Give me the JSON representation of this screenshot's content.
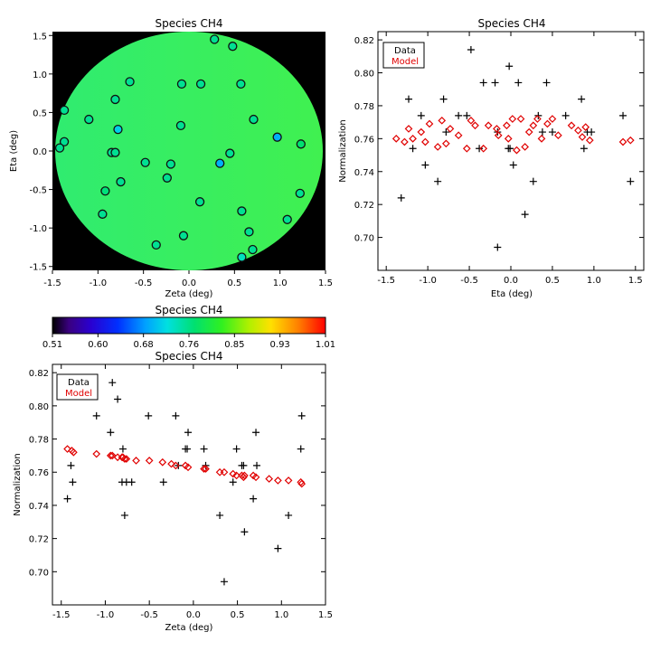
{
  "colors": {
    "data": "#000000",
    "model": "#e00000",
    "background": "#000000",
    "field": "#33ee66"
  },
  "map": {
    "title": "Species CH4",
    "xlabel": "Zeta (deg)",
    "ylabel": "Eta (deg)",
    "xlim": [
      -1.5,
      1.5
    ],
    "ylim": [
      -1.55,
      1.55
    ],
    "xticks": [
      "-1.5",
      "-1.0",
      "-0.5",
      "0.0",
      "0.5",
      "1.0",
      "1.5"
    ],
    "yticks": [
      "1.5",
      "1.0",
      "0.5",
      "0.0",
      "-0.5",
      "-1.0",
      "-1.5"
    ]
  },
  "colorbar": {
    "title": "Species CH4",
    "ticks": [
      "0.51",
      "0.60",
      "0.68",
      "0.76",
      "0.85",
      "0.93",
      "1.01"
    ]
  },
  "legend": {
    "data": "Data",
    "model": "Model"
  },
  "chart_data": [
    {
      "type": "scatter",
      "title": "Species CH4",
      "xlabel": "Zeta (deg)",
      "ylabel": "Eta (deg)",
      "xlim": [
        -1.5,
        1.5
      ],
      "ylim": [
        -1.55,
        1.55
      ],
      "points": [
        [
          0.28,
          1.45
        ],
        [
          0.48,
          1.36
        ],
        [
          -0.65,
          0.9
        ],
        [
          -0.08,
          0.87
        ],
        [
          0.13,
          0.87
        ],
        [
          0.57,
          0.87
        ],
        [
          -1.37,
          0.53
        ],
        [
          -1.1,
          0.41
        ],
        [
          -0.81,
          0.67
        ],
        [
          -0.78,
          0.28
        ],
        [
          0.71,
          0.41
        ],
        [
          -0.09,
          0.33
        ],
        [
          -1.37,
          0.12
        ],
        [
          -1.42,
          0.04
        ],
        [
          -0.85,
          -0.02
        ],
        [
          -0.81,
          -0.02
        ],
        [
          0.97,
          0.18
        ],
        [
          1.23,
          0.09
        ],
        [
          0.45,
          -0.03
        ],
        [
          -0.48,
          -0.15
        ],
        [
          -0.2,
          -0.17
        ],
        [
          0.34,
          -0.16
        ],
        [
          -0.75,
          -0.4
        ],
        [
          -0.24,
          -0.35
        ],
        [
          -0.92,
          -0.52
        ],
        [
          -0.95,
          -0.82
        ],
        [
          0.12,
          -0.66
        ],
        [
          0.58,
          -0.78
        ],
        [
          1.22,
          -0.55
        ],
        [
          1.08,
          -0.89
        ],
        [
          -0.06,
          -1.1
        ],
        [
          0.66,
          -1.05
        ],
        [
          -0.36,
          -1.22
        ],
        [
          0.7,
          -1.28
        ],
        [
          0.58,
          -1.38
        ]
      ],
      "values": [
        0.755,
        0.755,
        0.755,
        0.755,
        0.755,
        0.755,
        0.755,
        0.755,
        0.755,
        0.71,
        0.755,
        0.755,
        0.755,
        0.755,
        0.755,
        0.755,
        0.69,
        0.77,
        0.755,
        0.755,
        0.755,
        0.69,
        0.755,
        0.755,
        0.765,
        0.755,
        0.755,
        0.755,
        0.755,
        0.755,
        0.755,
        0.755,
        0.755,
        0.755,
        0.735
      ],
      "colorbar_range": [
        0.51,
        1.01
      ],
      "colorbar_title": "Species CH4",
      "colorbar_ticks": [
        "0.51",
        "0.60",
        "0.68",
        "0.76",
        "0.85",
        "0.93",
        "1.01"
      ]
    },
    {
      "type": "scatter",
      "title": "Species CH4",
      "xlabel": "Eta (deg)",
      "ylabel": "Normalization",
      "xlim": [
        -1.6,
        1.6
      ],
      "ylim": [
        0.68,
        0.825
      ],
      "xticks": [
        "-1.5",
        "-1.0",
        "-0.5",
        "0.0",
        "0.5",
        "1.0",
        "1.5"
      ],
      "yticks": [
        "0.82",
        "0.80",
        "0.78",
        "0.76",
        "0.74",
        "0.72",
        "0.70"
      ],
      "legend": "top-left",
      "series": [
        {
          "name": "Data",
          "marker": "plus",
          "points": [
            [
              -1.32,
              0.724
            ],
            [
              -1.23,
              0.784
            ],
            [
              -1.18,
              0.754
            ],
            [
              -1.08,
              0.774
            ],
            [
              -1.03,
              0.744
            ],
            [
              -0.88,
              0.734
            ],
            [
              -0.81,
              0.784
            ],
            [
              -0.78,
              0.764
            ],
            [
              -0.63,
              0.774
            ],
            [
              -0.53,
              0.774
            ],
            [
              -0.48,
              0.814
            ],
            [
              -0.38,
              0.754
            ],
            [
              -0.33,
              0.794
            ],
            [
              -0.19,
              0.794
            ],
            [
              -0.16,
              0.764
            ],
            [
              -0.16,
              0.694
            ],
            [
              -0.03,
              0.754
            ],
            [
              -0.02,
              0.804
            ],
            [
              -0.01,
              0.754
            ],
            [
              0.03,
              0.744
            ],
            [
              0.09,
              0.794
            ],
            [
              0.17,
              0.714
            ],
            [
              0.27,
              0.734
            ],
            [
              0.33,
              0.774
            ],
            [
              0.38,
              0.764
            ],
            [
              0.43,
              0.794
            ],
            [
              0.5,
              0.764
            ],
            [
              0.66,
              0.774
            ],
            [
              0.85,
              0.784
            ],
            [
              0.88,
              0.754
            ],
            [
              0.92,
              0.764
            ],
            [
              0.97,
              0.764
            ],
            [
              1.35,
              0.774
            ],
            [
              1.44,
              0.734
            ]
          ]
        },
        {
          "name": "Model",
          "marker": "diamond",
          "points": [
            [
              -1.38,
              0.76
            ],
            [
              -1.28,
              0.758
            ],
            [
              -1.23,
              0.766
            ],
            [
              -1.18,
              0.76
            ],
            [
              -1.08,
              0.764
            ],
            [
              -1.03,
              0.758
            ],
            [
              -0.98,
              0.769
            ],
            [
              -0.88,
              0.755
            ],
            [
              -0.83,
              0.771
            ],
            [
              -0.78,
              0.757
            ],
            [
              -0.73,
              0.766
            ],
            [
              -0.63,
              0.762
            ],
            [
              -0.53,
              0.754
            ],
            [
              -0.48,
              0.771
            ],
            [
              -0.43,
              0.768
            ],
            [
              -0.33,
              0.754
            ],
            [
              -0.27,
              0.768
            ],
            [
              -0.17,
              0.766
            ],
            [
              -0.15,
              0.762
            ],
            [
              -0.05,
              0.768
            ],
            [
              -0.03,
              0.76
            ],
            [
              0.02,
              0.772
            ],
            [
              0.07,
              0.753
            ],
            [
              0.12,
              0.772
            ],
            [
              0.17,
              0.755
            ],
            [
              0.22,
              0.764
            ],
            [
              0.27,
              0.768
            ],
            [
              0.32,
              0.772
            ],
            [
              0.37,
              0.76
            ],
            [
              0.44,
              0.769
            ],
            [
              0.5,
              0.772
            ],
            [
              0.57,
              0.762
            ],
            [
              0.73,
              0.768
            ],
            [
              0.81,
              0.765
            ],
            [
              0.86,
              0.761
            ],
            [
              0.9,
              0.767
            ],
            [
              0.95,
              0.759
            ],
            [
              1.35,
              0.758
            ],
            [
              1.44,
              0.759
            ]
          ]
        }
      ]
    },
    {
      "type": "scatter",
      "title": "Species CH4",
      "xlabel": "Zeta (deg)",
      "ylabel": "Normalization",
      "xlim": [
        -1.6,
        1.5
      ],
      "ylim": [
        0.68,
        0.825
      ],
      "xticks": [
        "-1.5",
        "-1.0",
        "-0.5",
        "0.0",
        "0.5",
        "1.0",
        "1.5"
      ],
      "yticks": [
        "0.82",
        "0.80",
        "0.78",
        "0.76",
        "0.74",
        "0.72",
        "0.70"
      ],
      "legend": "top-left",
      "series": [
        {
          "name": "Data",
          "marker": "plus",
          "points": [
            [
              -1.43,
              0.744
            ],
            [
              -1.39,
              0.764
            ],
            [
              -1.37,
              0.754
            ],
            [
              -1.1,
              0.794
            ],
            [
              -0.94,
              0.784
            ],
            [
              -0.92,
              0.814
            ],
            [
              -0.86,
              0.804
            ],
            [
              -0.81,
              0.754
            ],
            [
              -0.8,
              0.774
            ],
            [
              -0.78,
              0.734
            ],
            [
              -0.76,
              0.754
            ],
            [
              -0.7,
              0.754
            ],
            [
              -0.51,
              0.794
            ],
            [
              -0.34,
              0.754
            ],
            [
              -0.2,
              0.794
            ],
            [
              -0.17,
              0.764
            ],
            [
              -0.09,
              0.774
            ],
            [
              -0.07,
              0.774
            ],
            [
              -0.06,
              0.784
            ],
            [
              0.12,
              0.774
            ],
            [
              0.14,
              0.764
            ],
            [
              0.3,
              0.734
            ],
            [
              0.35,
              0.694
            ],
            [
              0.45,
              0.754
            ],
            [
              0.49,
              0.774
            ],
            [
              0.55,
              0.764
            ],
            [
              0.58,
              0.724
            ],
            [
              0.57,
              0.764
            ],
            [
              0.68,
              0.744
            ],
            [
              0.71,
              0.784
            ],
            [
              0.72,
              0.764
            ],
            [
              0.96,
              0.714
            ],
            [
              1.08,
              0.734
            ],
            [
              1.23,
              0.794
            ],
            [
              1.22,
              0.774
            ]
          ]
        },
        {
          "name": "Model",
          "marker": "diamond",
          "points": [
            [
              -1.43,
              0.774
            ],
            [
              -1.38,
              0.773
            ],
            [
              -1.36,
              0.772
            ],
            [
              -1.1,
              0.771
            ],
            [
              -0.94,
              0.77
            ],
            [
              -0.92,
              0.77
            ],
            [
              -0.86,
              0.769
            ],
            [
              -0.81,
              0.769
            ],
            [
              -0.8,
              0.769
            ],
            [
              -0.78,
              0.768
            ],
            [
              -0.76,
              0.768
            ],
            [
              -0.65,
              0.767
            ],
            [
              -0.5,
              0.767
            ],
            [
              -0.35,
              0.766
            ],
            [
              -0.25,
              0.765
            ],
            [
              -0.2,
              0.764
            ],
            [
              -0.09,
              0.764
            ],
            [
              -0.06,
              0.763
            ],
            [
              0.12,
              0.762
            ],
            [
              0.14,
              0.762
            ],
            [
              0.3,
              0.76
            ],
            [
              0.35,
              0.76
            ],
            [
              0.45,
              0.759
            ],
            [
              0.49,
              0.758
            ],
            [
              0.55,
              0.758
            ],
            [
              0.57,
              0.757
            ],
            [
              0.58,
              0.758
            ],
            [
              0.68,
              0.758
            ],
            [
              0.71,
              0.757
            ],
            [
              0.86,
              0.756
            ],
            [
              0.96,
              0.755
            ],
            [
              1.08,
              0.755
            ],
            [
              1.22,
              0.754
            ],
            [
              1.23,
              0.753
            ]
          ]
        }
      ]
    }
  ]
}
